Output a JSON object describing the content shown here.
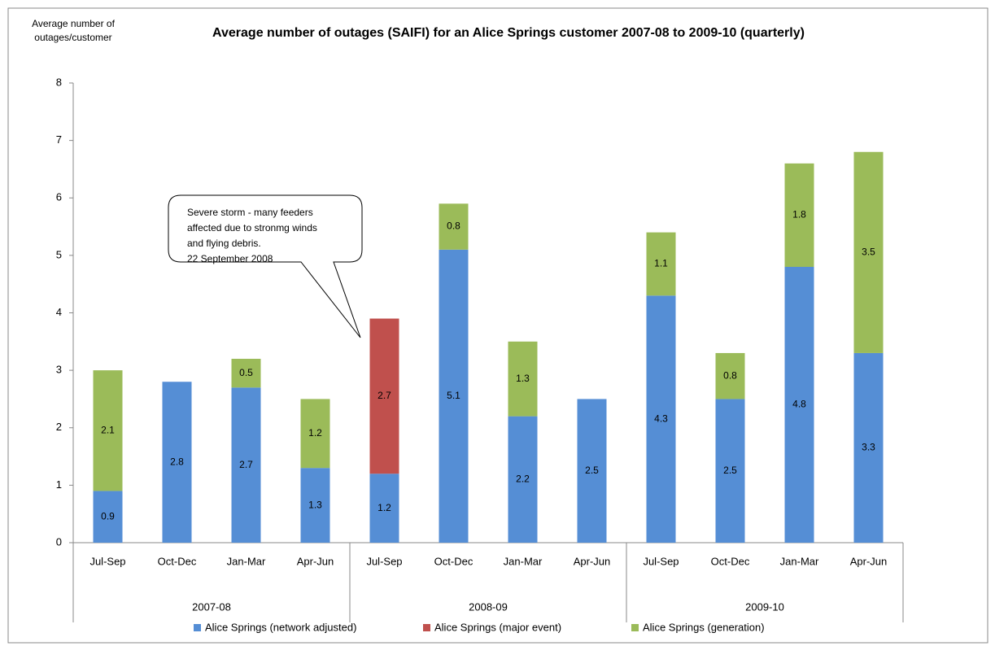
{
  "chart_data": {
    "type": "bar",
    "stacked": true,
    "title": "Average number of outages (SAIFI) for an Alice Springs customer 2007-08 to 2009-10 (quarterly)",
    "y_label": [
      "Average number of",
      "outages/customer"
    ],
    "categories": [
      "Jul-Sep",
      "Oct-Dec",
      "Jan-Mar",
      "Apr-Jun",
      "Jul-Sep",
      "Oct-Dec",
      "Jan-Mar",
      "Apr-Jun",
      "Jul-Sep",
      "Oct-Dec",
      "Jan-Mar",
      "Apr-Jun"
    ],
    "group_labels": [
      "2007-08",
      "2008-09",
      "2009-10"
    ],
    "series": [
      {
        "name": "Alice Springs (network adjusted)",
        "color": "#558ed5",
        "values": [
          0.9,
          2.8,
          2.7,
          1.3,
          1.2,
          5.1,
          2.2,
          2.5,
          4.3,
          2.5,
          4.8,
          3.3
        ]
      },
      {
        "name": "Alice Springs (major event)",
        "color": "#c0504d",
        "values": [
          null,
          null,
          null,
          null,
          2.7,
          null,
          null,
          null,
          null,
          null,
          null,
          null
        ]
      },
      {
        "name": "Alice Springs (generation)",
        "color": "#9bbb59",
        "values": [
          2.1,
          null,
          0.5,
          1.2,
          null,
          0.8,
          1.3,
          null,
          1.1,
          0.8,
          1.8,
          3.5
        ]
      }
    ],
    "ylim": [
      0,
      8
    ],
    "yticks": [
      0,
      1,
      2,
      3,
      4,
      5,
      6,
      7,
      8
    ],
    "legend": "bottom",
    "annotation": {
      "lines": [
        "Severe storm - many feeders",
        "affected due to stronmg winds",
        "and flying debris.",
        "22 September 2008"
      ]
    }
  }
}
